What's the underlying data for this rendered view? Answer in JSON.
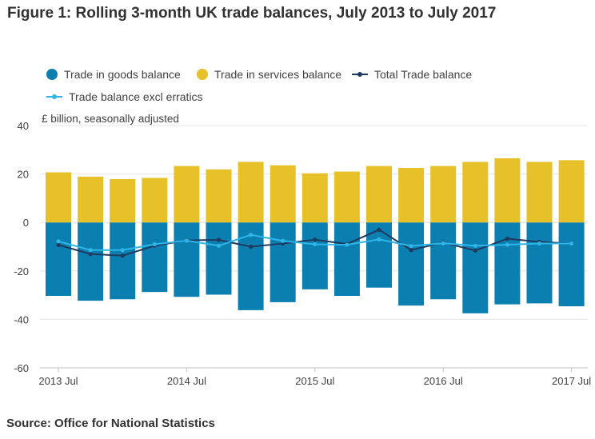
{
  "colors": {
    "goods": "#0a7fb0",
    "services": "#e7c12a",
    "total": "#1f3a5f",
    "excl": "#2fb5e8",
    "grid": "#e4e4e4",
    "axis": "#bfbfbf"
  },
  "source": "Source: Office for National Statistics",
  "chart_data": {
    "type": "bar",
    "title": "Figure 1: Rolling 3-month UK trade balances, July 2013 to July 2017",
    "units_label": "£ billion, seasonally adjusted",
    "ylim": [
      -60,
      40
    ],
    "yticks": [
      40,
      20,
      0,
      -20,
      -40,
      -60
    ],
    "xtick_labels": [
      "2013 Jul",
      "2014 Jul",
      "2015 Jul",
      "2016 Jul",
      "2017 Jul"
    ],
    "categories": [
      "2013 Jul",
      "2013 Oct",
      "2014 Jan",
      "2014 Apr",
      "2014 Jul",
      "2014 Oct",
      "2015 Jan",
      "2015 Apr",
      "2015 Jul",
      "2015 Oct",
      "2016 Jan",
      "2016 Apr",
      "2016 Jul",
      "2016 Oct",
      "2017 Jan",
      "2017 Apr",
      "2017 Jul"
    ],
    "stacked": true,
    "series": [
      {
        "name": "Trade in goods balance",
        "kind": "bar",
        "color_key": "goods",
        "values": [
          -30.3,
          -32.3,
          -31.7,
          -28.7,
          -30.7,
          -29.8,
          -36.2,
          -32.9,
          -27.6,
          -30.3,
          -26.9,
          -34.3,
          -31.7,
          -37.5,
          -33.8,
          -33.4,
          -34.6
        ]
      },
      {
        "name": "Trade in services balance",
        "kind": "bar",
        "color_key": "services",
        "values": [
          20.7,
          18.9,
          17.9,
          18.4,
          23.3,
          21.9,
          25.0,
          23.6,
          20.3,
          21.0,
          23.3,
          22.5,
          23.3,
          25.0,
          26.5,
          25.0,
          25.7
        ]
      },
      {
        "name": "Total Trade balance",
        "kind": "line",
        "color_key": "total",
        "values": [
          -9.3,
          -13.0,
          -13.7,
          -9.6,
          -7.4,
          -7.2,
          -10.0,
          -8.7,
          -7.1,
          -8.9,
          -3.0,
          -11.4,
          -8.3,
          -11.6,
          -6.7,
          -8.0,
          -8.7
        ]
      },
      {
        "name": "Trade balance excl erratics",
        "kind": "line",
        "color_key": "excl",
        "values": [
          -7.8,
          -11.4,
          -11.4,
          -9.0,
          -7.5,
          -9.6,
          -5.1,
          -7.6,
          -9.0,
          -9.2,
          -7.0,
          -9.7,
          -8.6,
          -9.6,
          -9.2,
          -8.7,
          -8.7
        ]
      }
    ]
  }
}
